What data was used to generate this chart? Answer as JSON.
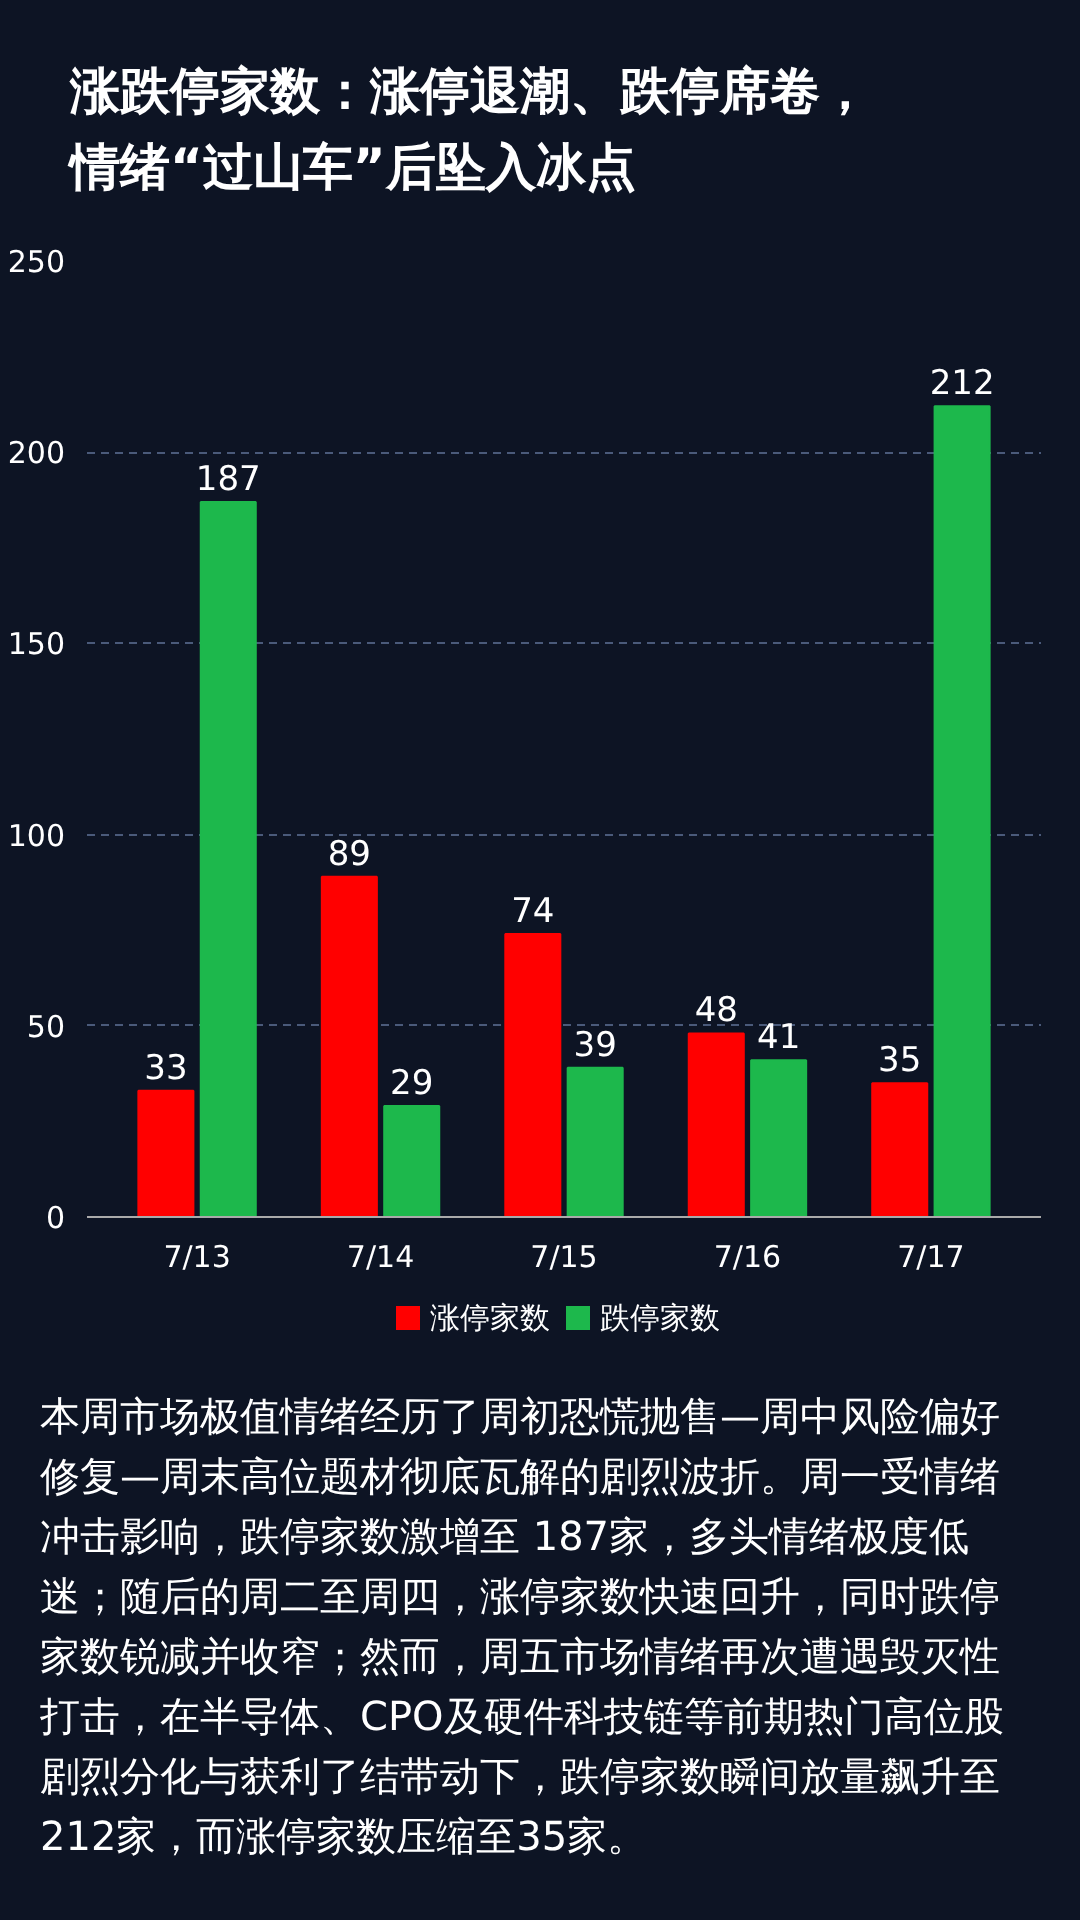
{
  "chart_data": {
    "type": "bar",
    "title": "涨跌停家数：涨停退潮、跌停席卷，情绪“过山车”后坠入冰点",
    "categories": [
      "7/13",
      "7/14",
      "7/15",
      "7/16",
      "7/17"
    ],
    "series": [
      {
        "name": "涨停家数",
        "color": "#ff0000",
        "values": [
          33,
          89,
          74,
          48,
          35
        ]
      },
      {
        "name": "跌停家数",
        "color": "#1db84c",
        "values": [
          187,
          29,
          39,
          41,
          212
        ]
      }
    ],
    "ylim": [
      0,
      250
    ],
    "yticks": [
      0,
      50,
      100,
      150,
      200,
      250
    ],
    "grid": "y",
    "legend": "bottom",
    "data_labels": true,
    "annotations": [
      "本周市场极值情绪经历了周初恐慌抛售—周中风险偏好修复—周末高位题材彻底瓦解的剧烈波折。周一受情绪冲击影响，跌停家数激增至 187家，多头情绪极度低迷；随后的周二至周四，涨停家数快速回升，同时跌停家数锐减并收窄；然而，周五市场情绪再次遭遇毁灭性打击，在半导体、CPO及硬件科技链等前期热门高位股剧烈分化与获利了结带动下，跌停家数瞬间放量飙升至212家，而涨停家数压缩至35家。"
    ]
  }
}
